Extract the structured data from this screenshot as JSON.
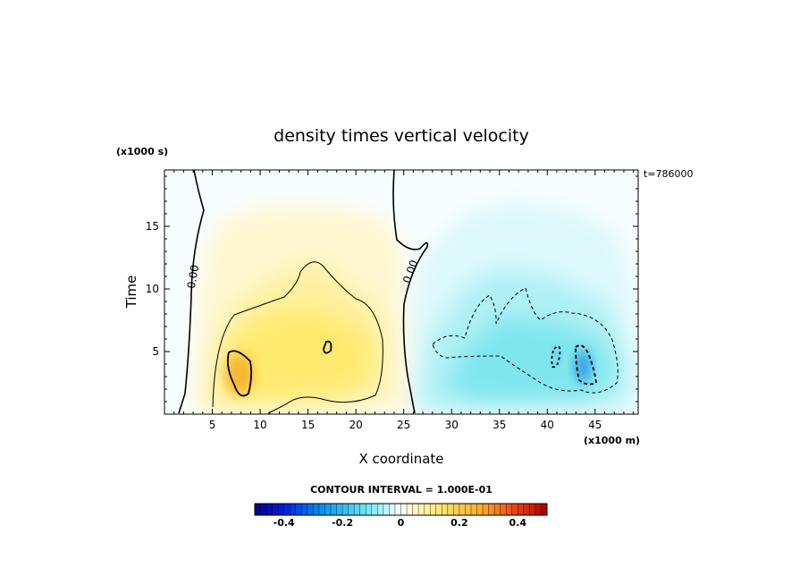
{
  "chart_data": {
    "type": "heatmap",
    "title": "density times vertical velocity",
    "xlabel": "X coordinate",
    "ylabel": "Time",
    "x_units": "(x1000 m)",
    "y_units": "(x1000 s)",
    "annotation_top_right": "t=786000",
    "xlim": [
      0,
      49.5
    ],
    "ylim": [
      0,
      19.5
    ],
    "x_ticks": [
      5,
      10,
      15,
      20,
      25,
      30,
      35,
      40,
      45
    ],
    "y_ticks": [
      5,
      10,
      15
    ],
    "contour_interval_label": "CONTOUR INTERVAL = 1.000E-01",
    "zero_contour_labels": [
      "0.00",
      "0.00"
    ],
    "colorbar": {
      "range": [
        -0.5,
        0.5
      ],
      "ticks": [
        -0.4,
        -0.2,
        0,
        0.2,
        0.4
      ],
      "tick_labels": [
        "-0.4",
        "-0.2",
        "0",
        "0.2",
        "0.4"
      ]
    },
    "features": [
      {
        "sign": "positive",
        "x_range": [
          2,
          26
        ],
        "peak_x": 7.8,
        "peak_t": 3.2,
        "peak_value": 0.3
      },
      {
        "sign": "negative",
        "x_range": [
          27,
          49.5
        ],
        "peak_x": 44.5,
        "peak_t": 3.5,
        "peak_value": -0.25
      }
    ],
    "grid": false,
    "legend": "colorbar-bottom"
  }
}
